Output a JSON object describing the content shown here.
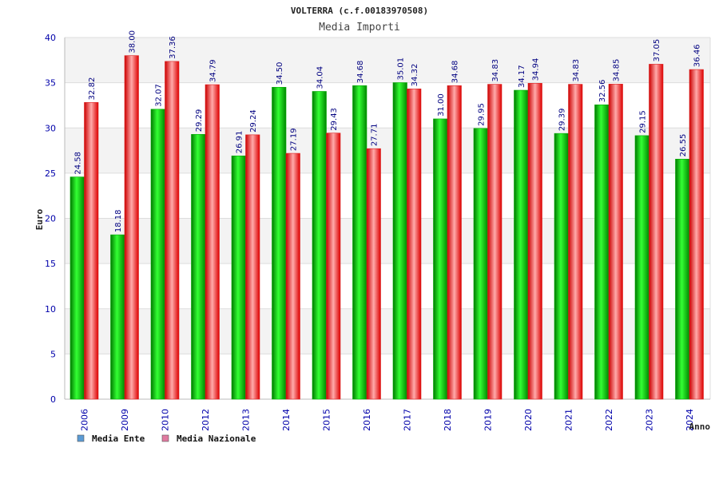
{
  "chart_data": {
    "type": "bar",
    "title": "VOLTERRA (c.f.00183970508)",
    "subtitle": "Media Importi",
    "xlabel": "Anno",
    "ylabel": "Euro",
    "ylim": [
      0,
      40
    ],
    "yticks": [
      0,
      5,
      10,
      15,
      20,
      25,
      30,
      35,
      40
    ],
    "grid": true,
    "legend_position": "bottom-left",
    "categories": [
      "2006",
      "2009",
      "2010",
      "2012",
      "2013",
      "2014",
      "2015",
      "2016",
      "2017",
      "2018",
      "2019",
      "2020",
      "2021",
      "2022",
      "2023",
      "2024"
    ],
    "series": [
      {
        "name": "Media Ente",
        "color": "#00cc00",
        "legend_color": "#5b9bd5",
        "values": [
          24.58,
          18.18,
          32.07,
          29.29,
          26.91,
          34.5,
          34.04,
          34.68,
          35.01,
          31.0,
          29.95,
          34.17,
          29.39,
          32.56,
          29.15,
          26.55
        ],
        "labels": [
          "24.58",
          "18.18",
          "32.07",
          "29.29",
          "26.91",
          "34.50",
          "34.04",
          "34.68",
          "35.01",
          "31.00",
          "29.95",
          "34.17",
          "29.39",
          "32.56",
          "29.15",
          "26.55"
        ]
      },
      {
        "name": "Media Nazionale",
        "color": "#ee3333",
        "legend_color": "#e07aa0",
        "values": [
          32.82,
          38.0,
          37.36,
          34.79,
          29.24,
          27.19,
          29.43,
          27.71,
          34.32,
          34.68,
          34.83,
          34.94,
          34.83,
          34.85,
          37.05,
          36.46
        ],
        "labels": [
          "32.82",
          "38.00",
          "37.36",
          "34.79",
          "29.24",
          "27.19",
          "29.43",
          "27.71",
          "34.32",
          "34.68",
          "34.83",
          "34.94",
          "34.83",
          "34.85",
          "37.05",
          "36.46"
        ]
      }
    ]
  }
}
